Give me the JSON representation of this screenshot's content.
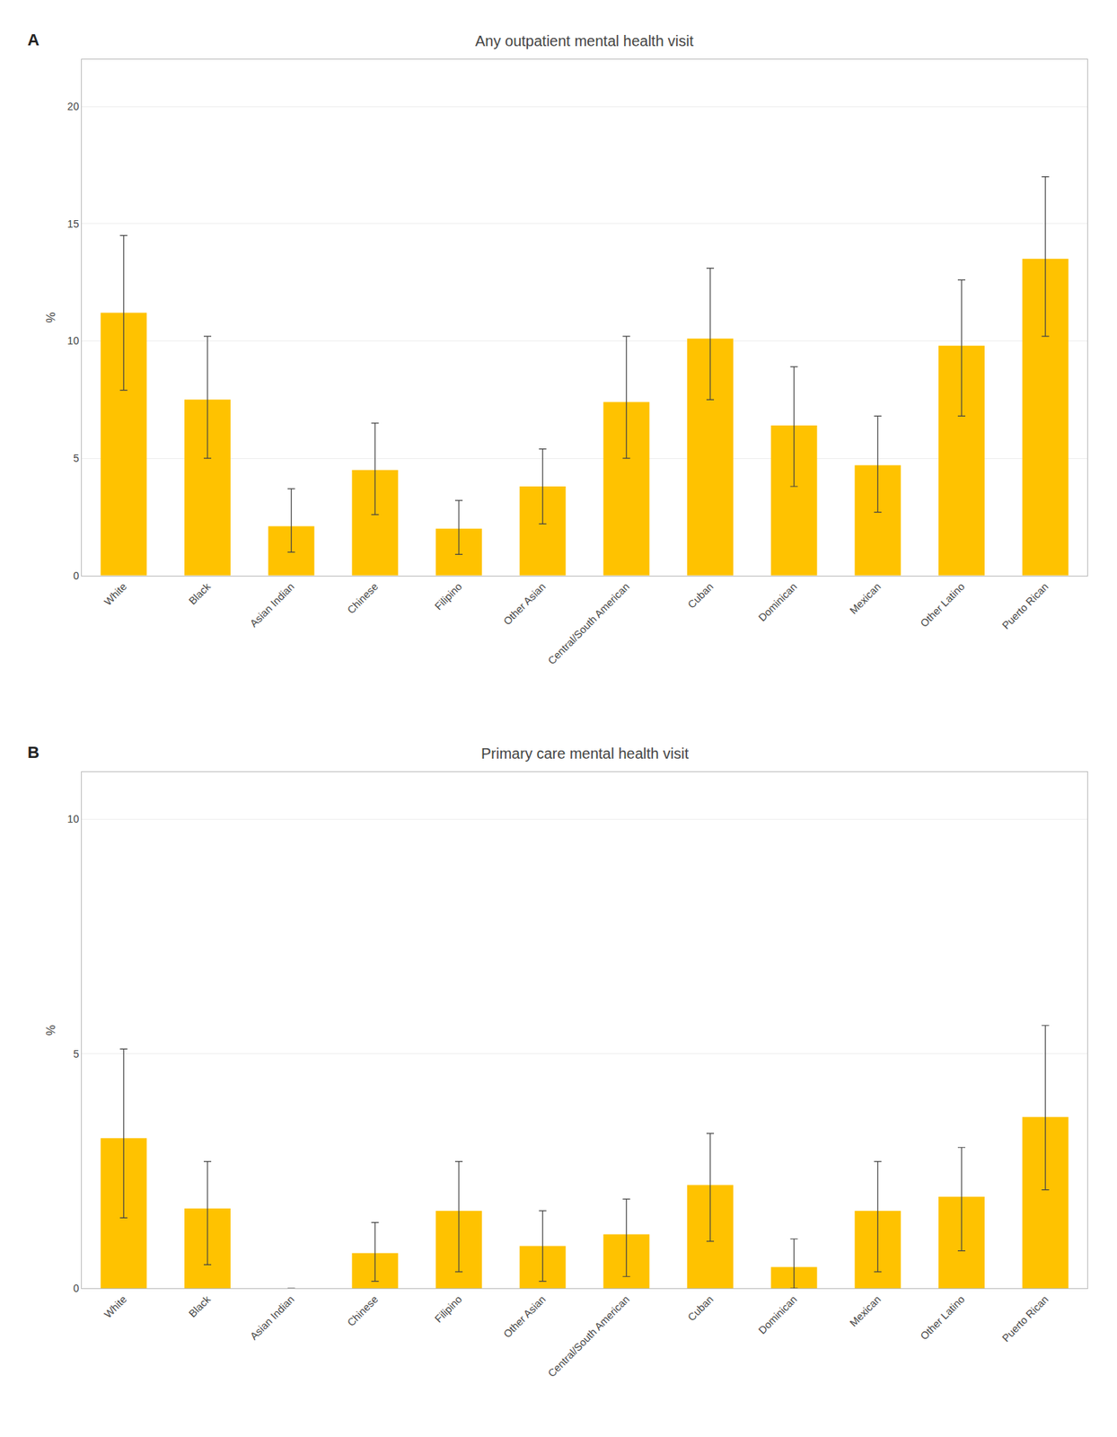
{
  "chart_data": [
    {
      "type": "bar",
      "title": "Any outpatient mental health visit",
      "annotations": [
        "A"
      ],
      "ylabel": "%",
      "categories": [
        "White",
        "Black",
        "Asian Indian",
        "Chinese",
        "Filipino",
        "Other Asian",
        "Central/South American",
        "Cuban",
        "Dominican",
        "Mexican",
        "Other Latino",
        "Puerto Rican"
      ],
      "values": [
        11.2,
        7.5,
        2.1,
        4.5,
        2.0,
        3.8,
        7.4,
        10.1,
        6.4,
        4.7,
        9.8,
        13.5
      ],
      "ci_low": [
        7.9,
        5.0,
        1.0,
        2.6,
        0.9,
        2.2,
        5.0,
        7.5,
        3.8,
        2.7,
        6.8,
        10.2
      ],
      "ci_high": [
        14.5,
        10.2,
        3.7,
        6.5,
        3.2,
        5.4,
        10.2,
        13.1,
        8.9,
        6.8,
        12.6,
        17.0
      ],
      "color": "#FFC200",
      "ylim": [
        0,
        22
      ],
      "yticks": [
        0,
        5,
        10,
        15,
        20
      ],
      "grid": true
    },
    {
      "type": "bar",
      "title": "Primary care mental health visit",
      "annotations": [
        "B"
      ],
      "ylabel": "%",
      "categories": [
        "White",
        "Black",
        "Asian Indian",
        "Chinese",
        "Filipino",
        "Other Asian",
        "Central/South American",
        "Cuban",
        "Dominican",
        "Mexican",
        "Other Latino",
        "Puerto Rican"
      ],
      "values": [
        3.2,
        1.7,
        0.0,
        0.75,
        1.65,
        0.9,
        1.15,
        2.2,
        0.45,
        1.65,
        1.95,
        3.65
      ],
      "ci_low": [
        1.5,
        0.5,
        0.0,
        0.15,
        0.35,
        0.15,
        0.25,
        1.0,
        0.0,
        0.35,
        0.8,
        2.1
      ],
      "ci_high": [
        5.1,
        2.7,
        0.0,
        1.4,
        2.7,
        1.65,
        1.9,
        3.3,
        1.05,
        2.7,
        3.0,
        5.6
      ],
      "color": "#FFC200",
      "ylim": [
        0,
        11
      ],
      "yticks": [
        0,
        5,
        10
      ],
      "grid": true
    }
  ]
}
